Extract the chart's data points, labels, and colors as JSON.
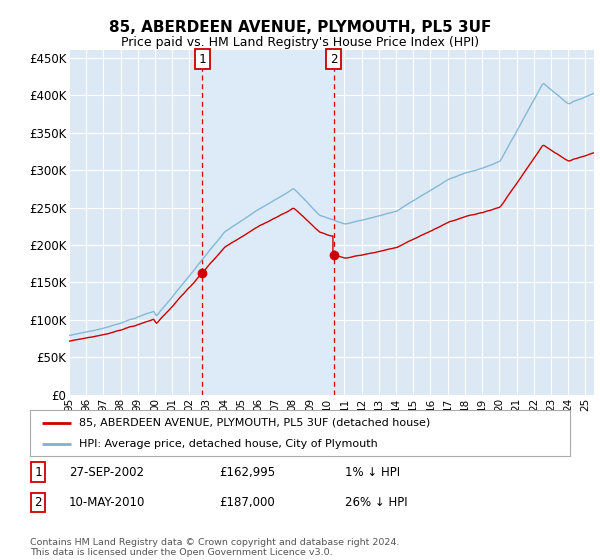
{
  "title": "85, ABERDEEN AVENUE, PLYMOUTH, PL5 3UF",
  "subtitle": "Price paid vs. HM Land Registry's House Price Index (HPI)",
  "background_color": "#ffffff",
  "plot_bg_color": "#dce9f5",
  "grid_color": "#ffffff",
  "ylim": [
    0,
    460000
  ],
  "yticks": [
    0,
    50000,
    100000,
    150000,
    200000,
    250000,
    300000,
    350000,
    400000,
    450000
  ],
  "ytick_labels": [
    "£0",
    "£50K",
    "£100K",
    "£150K",
    "£200K",
    "£250K",
    "£300K",
    "£350K",
    "£400K",
    "£450K"
  ],
  "sale1_year": 2002.75,
  "sale1_price": 162995,
  "sale2_year": 2010.37,
  "sale2_price": 187000,
  "legend_line1": "85, ABERDEEN AVENUE, PLYMOUTH, PL5 3UF (detached house)",
  "legend_line2": "HPI: Average price, detached house, City of Plymouth",
  "note1_date": "27-SEP-2002",
  "note1_price": "£162,995",
  "note1_hpi": "1% ↓ HPI",
  "note2_date": "10-MAY-2010",
  "note2_price": "£187,000",
  "note2_hpi": "26% ↓ HPI",
  "footer": "Contains HM Land Registry data © Crown copyright and database right 2024.\nThis data is licensed under the Open Government Licence v3.0.",
  "hpi_color": "#7ab3d4",
  "price_color": "#cc0000",
  "vline_color": "#cc0000",
  "shade_color": "#ddeaf7",
  "box_edge_color": "#cc0000"
}
